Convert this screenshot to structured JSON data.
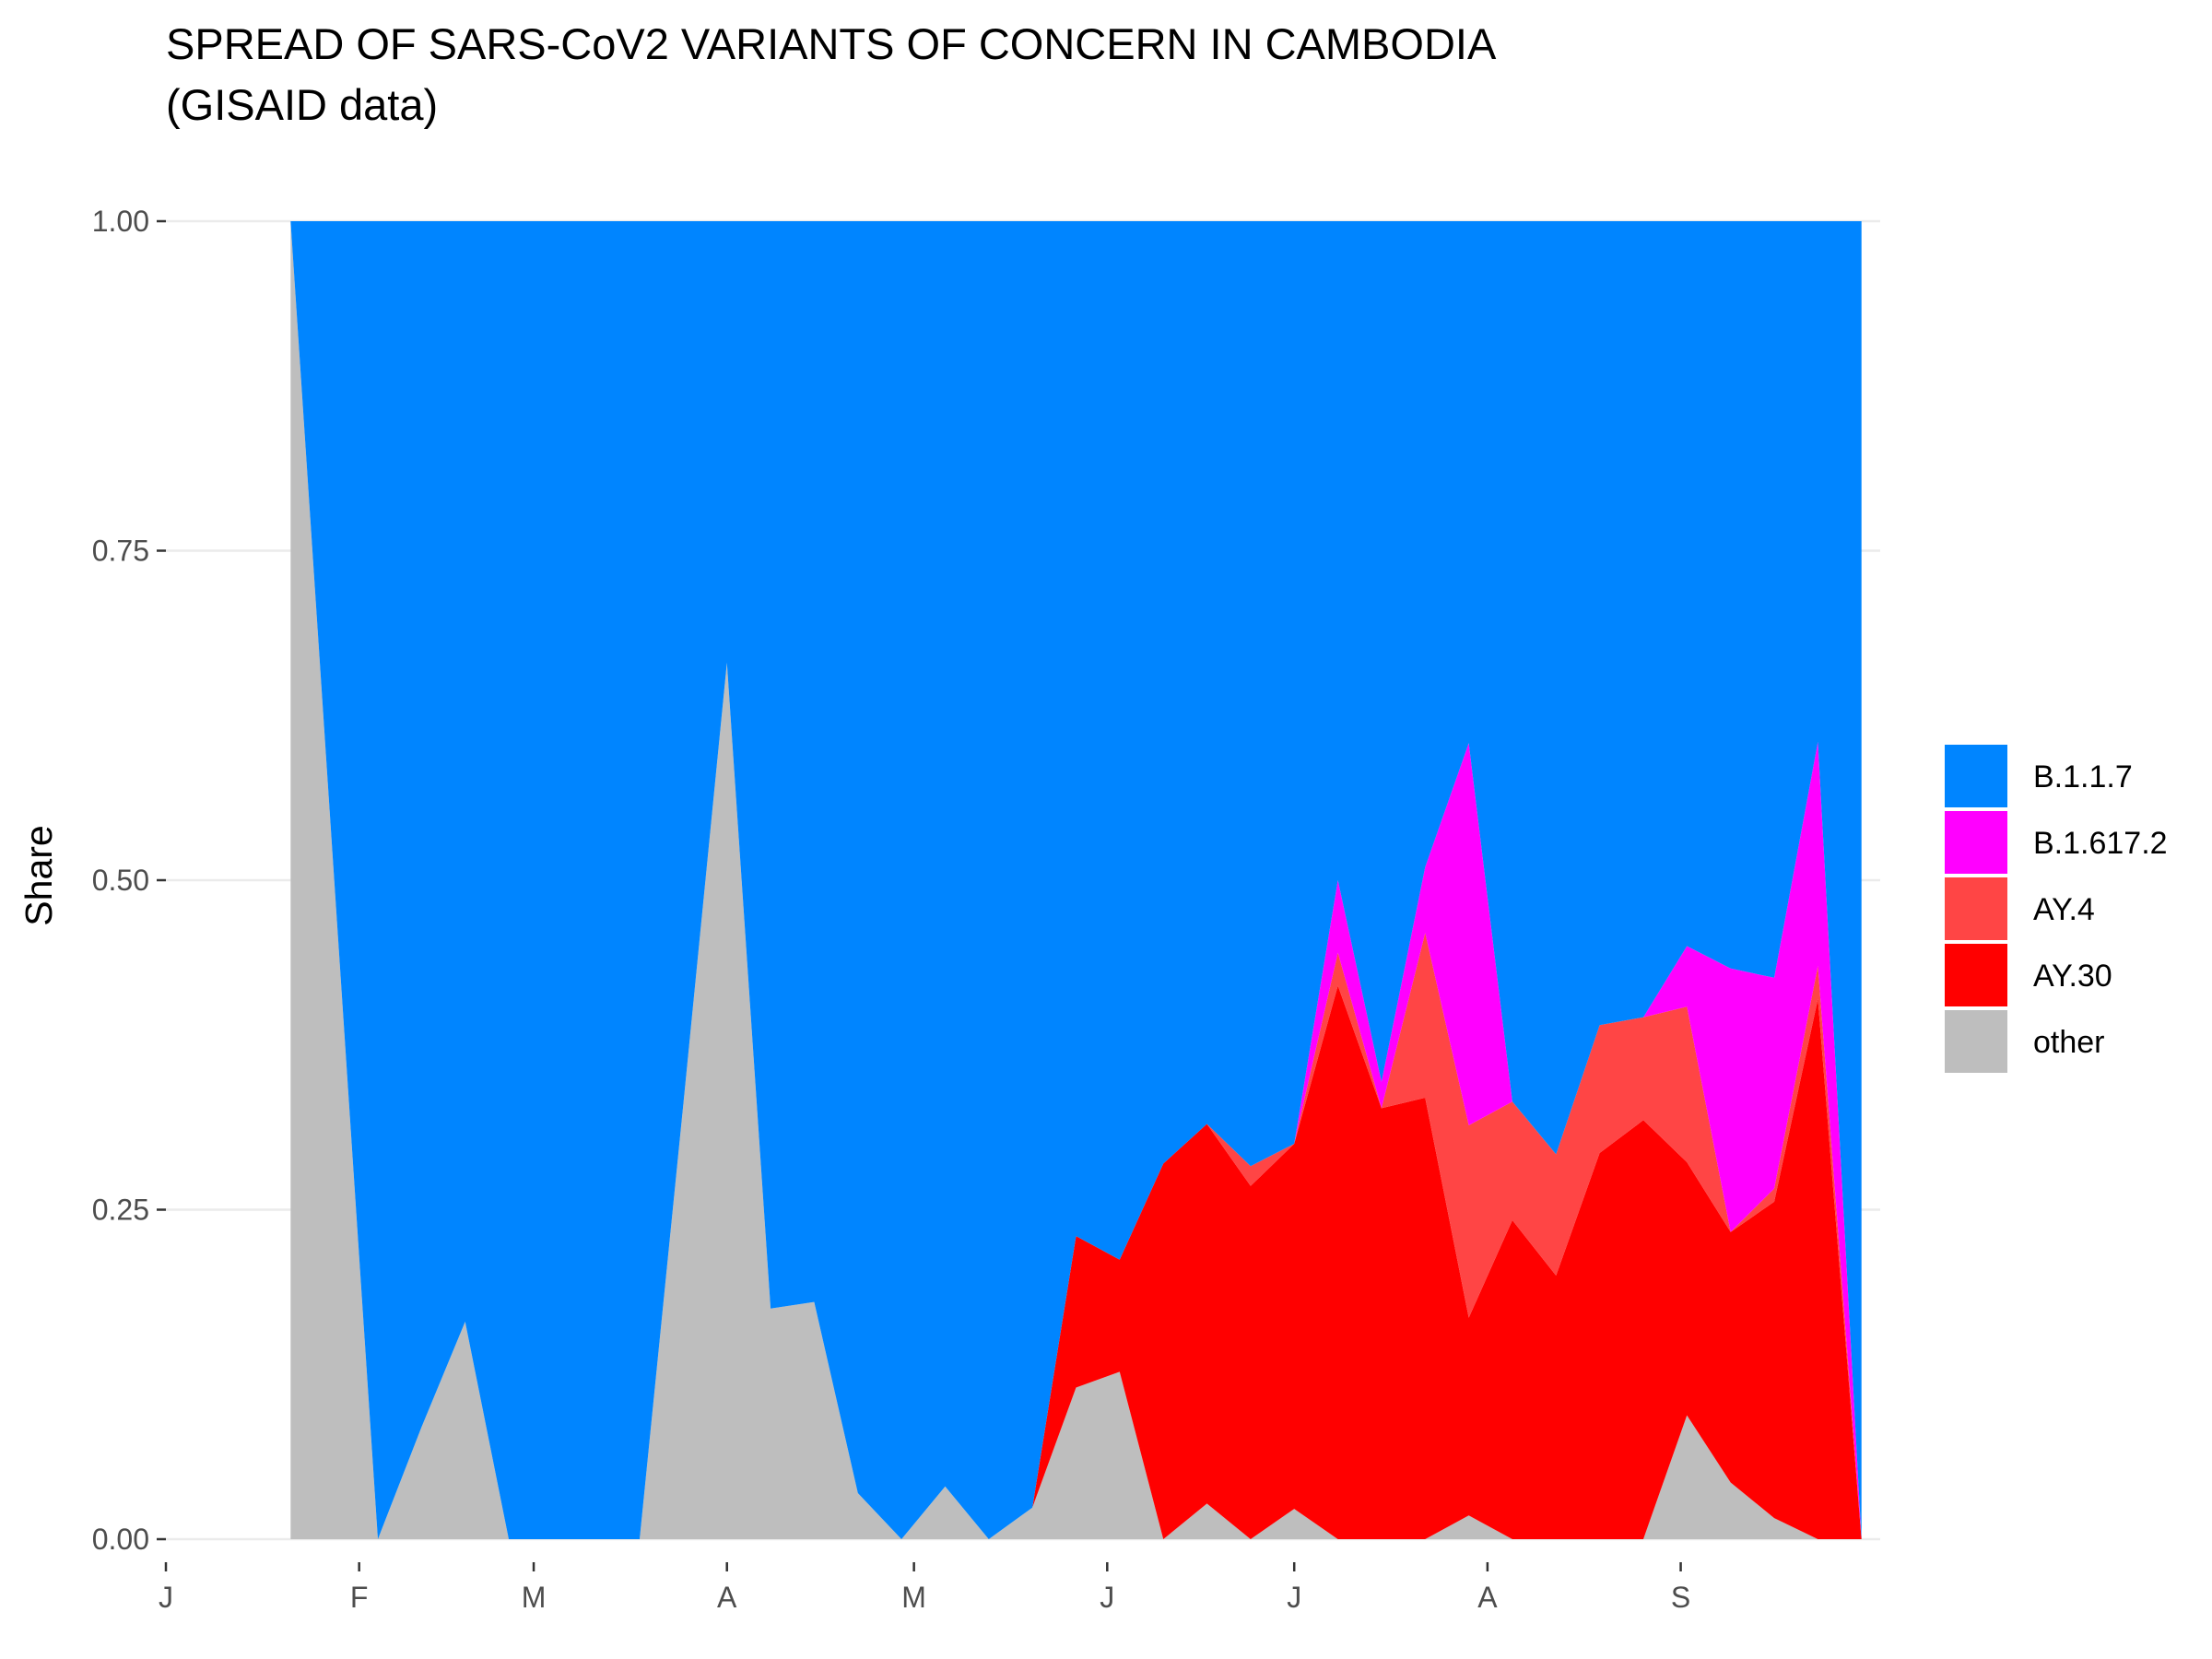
{
  "chart_data": {
    "type": "area",
    "stacked": true,
    "normalized": true,
    "title": "SPREAD OF SARS-CoV2 VARIANTS OF CONCERN IN CAMBODIA",
    "subtitle": "(GISAID data)",
    "xlabel": "",
    "ylabel": "Share",
    "ylim": [
      0,
      1
    ],
    "xlim": [
      "2021-01-01",
      "2021-10-03"
    ],
    "y_ticks": [
      "0.00",
      "0.25",
      "0.50",
      "0.75",
      "1.00"
    ],
    "x_ticks": [
      {
        "date": "2021-01-01",
        "label": "J"
      },
      {
        "date": "2021-02-01",
        "label": "F"
      },
      {
        "date": "2021-03-01",
        "label": "M"
      },
      {
        "date": "2021-04-01",
        "label": "A"
      },
      {
        "date": "2021-05-01",
        "label": "M"
      },
      {
        "date": "2021-06-01",
        "label": "J"
      },
      {
        "date": "2021-07-01",
        "label": "J"
      },
      {
        "date": "2021-08-01",
        "label": "A"
      },
      {
        "date": "2021-09-01",
        "label": "S"
      }
    ],
    "grid": true,
    "legend_position": "right",
    "x": [
      "2021-01-21",
      "2021-02-04",
      "2021-02-11",
      "2021-02-18",
      "2021-02-25",
      "2021-03-04",
      "2021-03-11",
      "2021-03-18",
      "2021-03-25",
      "2021-04-01",
      "2021-04-08",
      "2021-04-15",
      "2021-04-22",
      "2021-04-29",
      "2021-05-06",
      "2021-05-13",
      "2021-05-20",
      "2021-05-27",
      "2021-06-03",
      "2021-06-10",
      "2021-06-17",
      "2021-06-24",
      "2021-07-01",
      "2021-07-08",
      "2021-07-15",
      "2021-07-22",
      "2021-07-29",
      "2021-08-05",
      "2021-08-12",
      "2021-08-19",
      "2021-08-26",
      "2021-09-02",
      "2021-09-09",
      "2021-09-16",
      "2021-09-23",
      "2021-09-30"
    ],
    "series": [
      {
        "name": "other",
        "color": "#bebebe",
        "values": [
          1.0,
          0.0,
          0.085,
          0.165,
          0.0,
          0.0,
          0.0,
          0.0,
          0.33,
          0.665,
          0.175,
          0.18,
          0.035,
          0.0,
          0.04,
          0.0,
          0.024,
          0.115,
          0.127,
          0.0,
          0.027,
          0.0,
          0.023,
          0.0,
          0.0,
          0.0,
          0.018,
          0.0,
          0.0,
          0.0,
          0.0,
          0.094,
          0.043,
          0.016,
          0.0,
          0.0
        ]
      },
      {
        "name": "AY.30",
        "color": "#ff0000",
        "values": [
          0,
          0,
          0,
          0,
          0,
          0,
          0,
          0,
          0,
          0,
          0,
          0,
          0,
          0,
          0,
          0,
          0,
          0.115,
          0.085,
          0.285,
          0.288,
          0.268,
          0.277,
          0.42,
          0.327,
          0.335,
          0.15,
          0.242,
          0.2,
          0.293,
          0.318,
          0.192,
          0.19,
          0.24,
          0.41,
          0.0
        ]
      },
      {
        "name": "AY.4",
        "color": "#ff4545",
        "values": [
          0,
          0,
          0,
          0,
          0,
          0,
          0,
          0,
          0,
          0,
          0,
          0,
          0,
          0,
          0,
          0,
          0,
          0,
          0,
          0,
          0,
          0.015,
          0.0,
          0.025,
          0.0,
          0.125,
          0.146,
          0.09,
          0.092,
          0.097,
          0.078,
          0.118,
          0.0,
          0.01,
          0.025,
          0.0
        ]
      },
      {
        "name": "B.1.617.2",
        "color": "#ff00ff",
        "values": [
          0,
          0,
          0,
          0,
          0,
          0,
          0,
          0,
          0,
          0,
          0,
          0,
          0,
          0,
          0,
          0,
          0,
          0,
          0,
          0,
          0,
          0,
          0,
          0.055,
          0.02,
          0.05,
          0.29,
          0.0,
          0.0,
          0.0,
          0.0,
          0.046,
          0.2,
          0.16,
          0.17,
          0.0
        ]
      },
      {
        "name": "B.1.1.7",
        "color": "#0085ff",
        "values": [
          0.0,
          1.0,
          0.915,
          0.835,
          1.0,
          1.0,
          1.0,
          1.0,
          0.67,
          0.335,
          0.825,
          0.82,
          0.965,
          1.0,
          0.96,
          1.0,
          0.976,
          0.77,
          0.788,
          0.715,
          0.685,
          0.717,
          0.7,
          0.5,
          0.653,
          0.49,
          0.396,
          0.668,
          0.708,
          0.61,
          0.604,
          0.55,
          0.567,
          0.574,
          0.395,
          1.0
        ]
      }
    ],
    "legend_order": [
      "B.1.1.7",
      "B.1.617.2",
      "AY.4",
      "AY.30",
      "other"
    ]
  }
}
